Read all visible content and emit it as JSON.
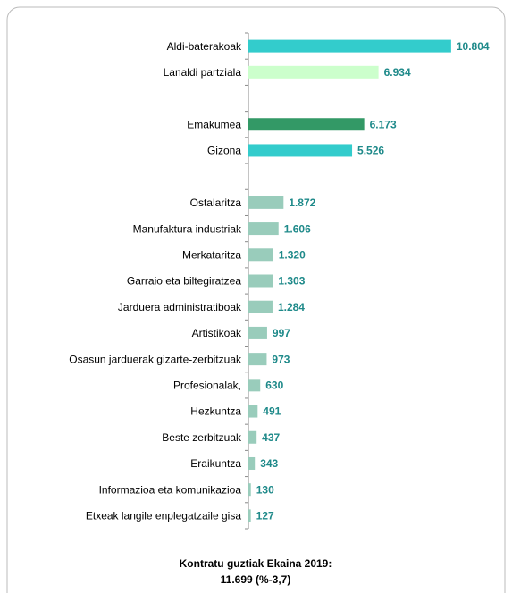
{
  "chart_data": {
    "type": "bar",
    "orientation": "horizontal",
    "categories": [
      "Aldi-baterakoak",
      "Lanaldi partziala",
      null,
      "Emakumea",
      "Gizona",
      null,
      "Ostalaritza",
      "Manufaktura industriak",
      "Merkataritza",
      "Garraio eta biltegiratzea",
      "Jarduera administratiboak",
      "Artistikoak",
      "Osasun jarduerak gizarte-zerbitzuak",
      "Profesionalak,",
      "Hezkuntza",
      "Beste zerbitzuak",
      "Eraikuntza",
      "Informazioa eta komunikazioa",
      "Etxeak langile enplegatzaile gisa"
    ],
    "values": [
      10804,
      6934,
      null,
      6173,
      5526,
      null,
      1872,
      1606,
      1320,
      1303,
      1284,
      997,
      973,
      630,
      491,
      437,
      343,
      130,
      127
    ],
    "value_labels": [
      "10.804",
      "6.934",
      null,
      "6.173",
      "5.526",
      null,
      "1.872",
      "1.606",
      "1.320",
      "1.303",
      "1.284",
      "997",
      "973",
      "630",
      "491",
      "437",
      "343",
      "130",
      "127"
    ],
    "colors": [
      "#33cccc",
      "#ccffcc",
      null,
      "#339966",
      "#33cccc",
      null,
      "#99ccbb",
      "#99ccbb",
      "#99ccbb",
      "#99ccbb",
      "#99ccbb",
      "#99ccbb",
      "#99ccbb",
      "#99ccbb",
      "#99ccbb",
      "#99ccbb",
      "#99ccbb",
      "#99ccbb",
      "#99ccbb"
    ],
    "xlim": [
      0,
      13000
    ],
    "annotations": [
      "Kontratu guztiak Ekaina 2019:",
      "11.699 (%-3,7)"
    ]
  }
}
